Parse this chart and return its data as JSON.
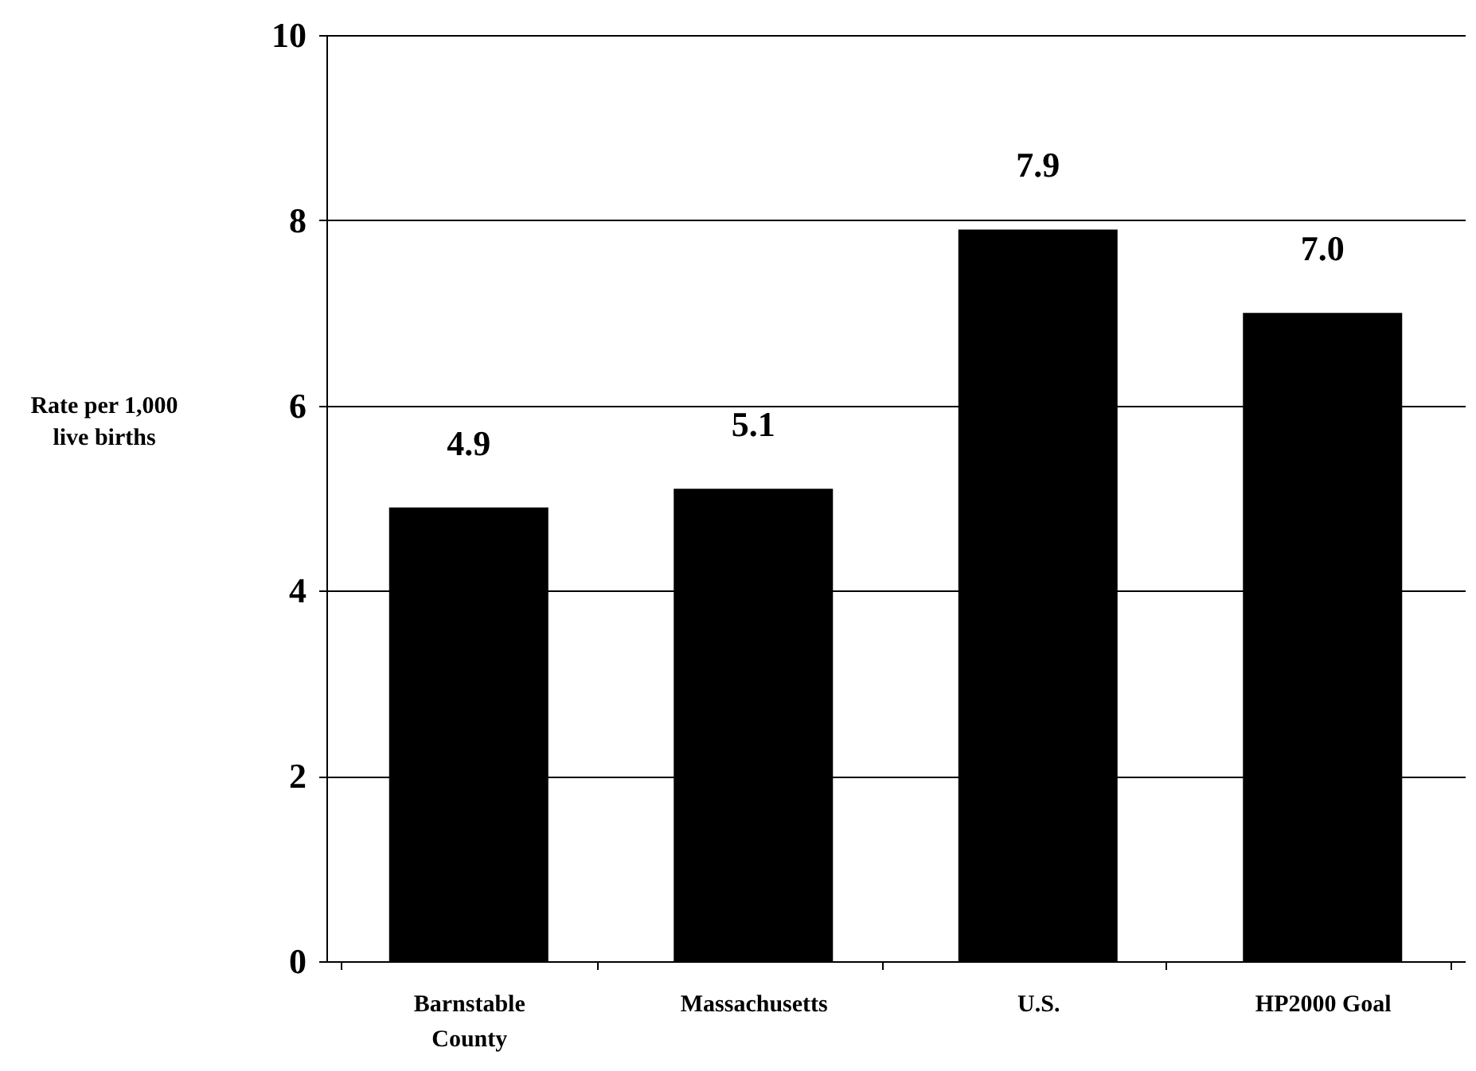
{
  "chart_data": {
    "type": "bar",
    "ylabel": "Rate per 1,000 live births",
    "categories": [
      "Barnstable County",
      "Massachusetts",
      "U.S.",
      "HP2000 Goal"
    ],
    "values": [
      4.9,
      5.1,
      7.9,
      7.0
    ],
    "color": "#000000",
    "value_labels": [
      "4.9",
      "5.1",
      "7.9",
      "7.0"
    ],
    "ylim": [
      0,
      10
    ],
    "yticks": [
      0,
      2,
      4,
      6,
      8,
      10
    ],
    "grid": "y"
  }
}
